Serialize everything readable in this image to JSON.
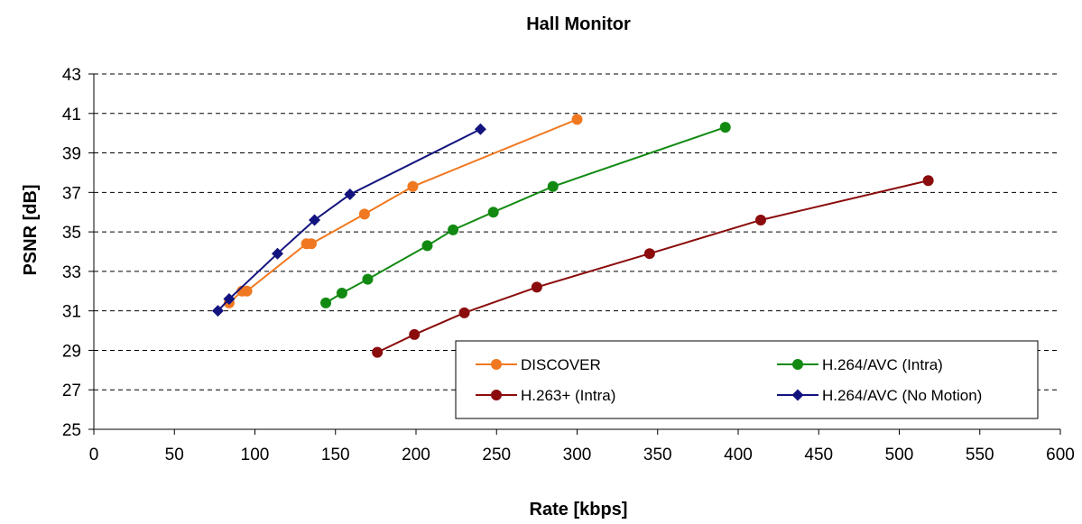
{
  "chart_data": {
    "type": "line",
    "title": "Hall Monitor",
    "xlabel": "Rate [kbps]",
    "ylabel": "PSNR [dB]",
    "xlim": [
      0,
      600
    ],
    "ylim": [
      25,
      43
    ],
    "xticks": [
      0,
      50,
      100,
      150,
      200,
      250,
      300,
      350,
      400,
      450,
      500,
      550,
      600
    ],
    "yticks": [
      25,
      27,
      29,
      31,
      33,
      35,
      37,
      39,
      41,
      43
    ],
    "grid": "horizontal dashed",
    "legend_position": "bottom-right inside plot",
    "series": [
      {
        "name": "DISCOVER",
        "color": "#F07820",
        "marker": "circle",
        "points": [
          [
            84,
            31.4
          ],
          [
            92,
            32.0
          ],
          [
            95,
            32.0
          ],
          [
            132,
            34.4
          ],
          [
            135,
            34.4
          ],
          [
            168,
            35.9
          ],
          [
            198,
            37.3
          ],
          [
            300,
            40.7
          ]
        ]
      },
      {
        "name": "H.264/AVC (Intra)",
        "color": "#128A12",
        "marker": "circle",
        "points": [
          [
            144,
            31.4
          ],
          [
            154,
            31.9
          ],
          [
            170,
            32.6
          ],
          [
            207,
            34.3
          ],
          [
            223,
            35.1
          ],
          [
            248,
            36.0
          ],
          [
            285,
            37.3
          ],
          [
            392,
            40.3
          ]
        ]
      },
      {
        "name": "H.263+ (Intra)",
        "color": "#8B0C0C",
        "marker": "circle",
        "points": [
          [
            176,
            28.9
          ],
          [
            199,
            29.8
          ],
          [
            230,
            30.9
          ],
          [
            275,
            32.2
          ],
          [
            345,
            33.9
          ],
          [
            414,
            35.6
          ],
          [
            518,
            37.6
          ]
        ]
      },
      {
        "name": "H.264/AVC (No Motion)",
        "color": "#13137F",
        "marker": "diamond",
        "points": [
          [
            77,
            31.0
          ],
          [
            84,
            31.6
          ],
          [
            114,
            33.9
          ],
          [
            137,
            35.6
          ],
          [
            159,
            36.9
          ],
          [
            240,
            40.2
          ]
        ]
      }
    ],
    "legend_order": [
      "DISCOVER",
      "H.264/AVC (Intra)",
      "H.263+ (Intra)",
      "H.264/AVC (No Motion)"
    ]
  }
}
